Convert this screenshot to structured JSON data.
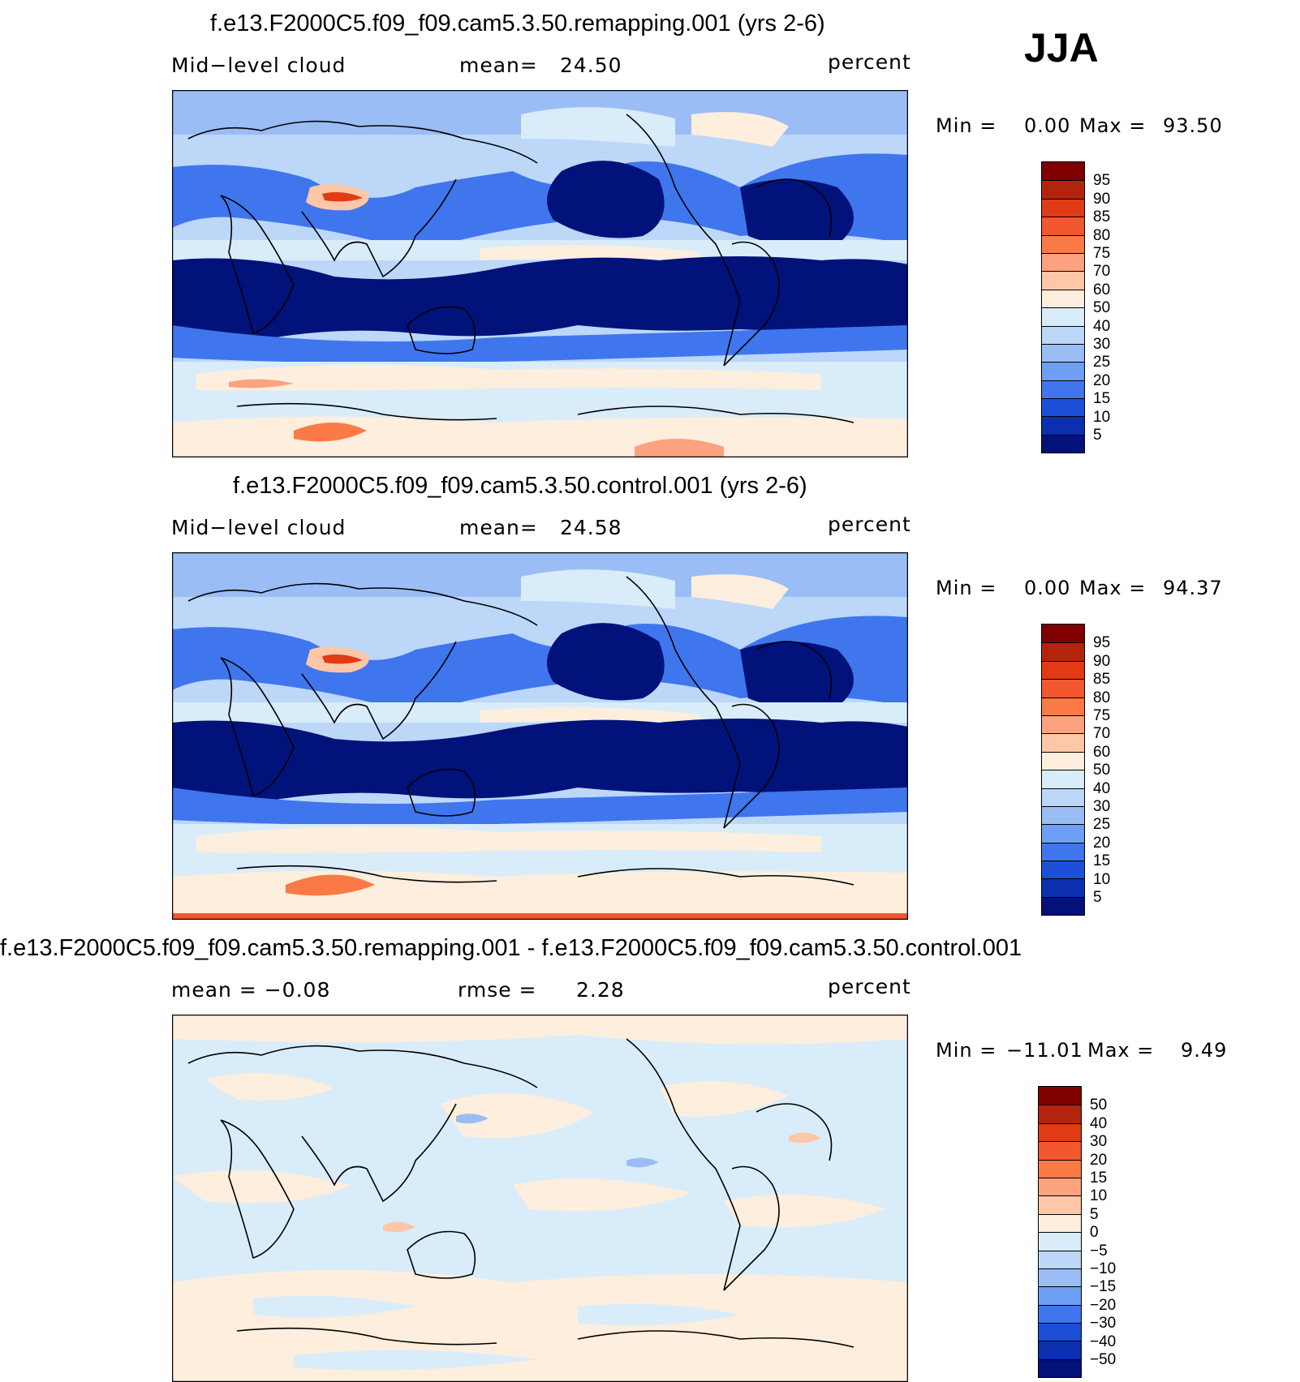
{
  "season": "JJA",
  "panels": [
    {
      "title": "f.e13.F2000C5.f09_f09.cam5.3.50.remapping.001 (yrs 2-6)",
      "left_text": "Mid−level  cloud",
      "center_label": "mean=",
      "center_value": "24.50",
      "units": "percent",
      "min_label": "Min  =",
      "min_value": "0.00",
      "max_label": "Max  =",
      "max_value": "93.50"
    },
    {
      "title": "f.e13.F2000C5.f09_f09.cam5.3.50.control.001 (yrs 2-6)",
      "left_text": "Mid−level  cloud",
      "center_label": "mean=",
      "center_value": "24.58",
      "units": "percent",
      "min_label": "Min  =",
      "min_value": "0.00",
      "max_label": "Max  =",
      "max_value": "94.37"
    },
    {
      "title": "f.e13.F2000C5.f09_f09.cam5.3.50.remapping.001 - f.e13.F2000C5.f09_f09.cam5.3.50.control.001",
      "left_text": "mean  =    −0.08",
      "center_label": "rmse  =",
      "center_value": "2.28",
      "units": "percent",
      "min_label": "Min  =",
      "min_value": "−11.01",
      "max_label": "Max  =",
      "max_value": "9.49"
    }
  ],
  "colorbar_abs": {
    "labels": [
      "95",
      "90",
      "85",
      "80",
      "75",
      "70",
      "60",
      "50",
      "40",
      "30",
      "25",
      "20",
      "15",
      "10",
      "5"
    ],
    "colors": [
      "#800000",
      "#b3240f",
      "#e03b14",
      "#f2582e",
      "#fa7a47",
      "#fca27e",
      "#fdc7a8",
      "#feeedd",
      "#d9ecfa",
      "#bcd7f8",
      "#9bbdf6",
      "#6f9ef5",
      "#3f76ee",
      "#1c4fd8",
      "#0b2fae",
      "#01127a"
    ]
  },
  "colorbar_diff": {
    "labels": [
      "50",
      "40",
      "30",
      "20",
      "15",
      "10",
      "5",
      "0",
      "−5",
      "−10",
      "−15",
      "−20",
      "−30",
      "−40",
      "−50"
    ],
    "colors": [
      "#800000",
      "#b3240f",
      "#e03b14",
      "#f2582e",
      "#fa7a47",
      "#fca27e",
      "#fdc7a8",
      "#feeedd",
      "#d9ecfa",
      "#bcd7f8",
      "#9bbdf6",
      "#6f9ef5",
      "#3f76ee",
      "#1c4fd8",
      "#0b2fae",
      "#01127a"
    ]
  }
}
